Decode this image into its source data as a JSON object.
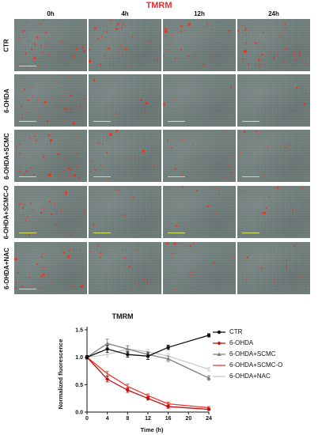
{
  "figure_title": "TMRM",
  "columns": [
    "0h",
    "4h",
    "12h",
    "24h"
  ],
  "rows": [
    "CTR",
    "6-OHDA",
    "6-OHDA+SCMC",
    "6-OHDA+SCMC-O",
    "6-OHDA+NAC"
  ],
  "colors": {
    "figure_title": "#e53030",
    "CTR": "#111111",
    "6-OHDA": "#c01010",
    "6-OHDA+SCMC": "#808080",
    "6-OHDA+SCMC-O": "#ee3a2a",
    "6-OHDA+NAC": "#c8c8c8"
  },
  "chart_data": {
    "type": "line",
    "title": "TMRM",
    "xlabel": "Time (h)",
    "ylabel": "Normalized fluorescence",
    "xlim": [
      0,
      24
    ],
    "ylim": [
      0,
      1.5
    ],
    "xticks": [
      0,
      4,
      8,
      12,
      16,
      20,
      24
    ],
    "yticks": [
      0.0,
      0.5,
      1.0,
      1.5
    ],
    "legend_position": "right",
    "x": [
      0,
      4,
      8,
      12,
      16,
      24
    ],
    "series": [
      {
        "name": "CTR",
        "values": [
          1.0,
          1.15,
          1.05,
          1.02,
          1.18,
          1.4
        ],
        "errors": [
          0.03,
          0.06,
          0.05,
          0.06,
          0.04,
          0.03
        ],
        "marker": "circle"
      },
      {
        "name": "6-OHDA",
        "values": [
          1.0,
          0.6,
          0.4,
          0.25,
          0.1,
          0.05
        ],
        "errors": [
          0.03,
          0.05,
          0.04,
          0.03,
          0.03,
          0.02
        ],
        "marker": "diamond"
      },
      {
        "name": "6-OHDA+SCMC",
        "values": [
          1.0,
          1.25,
          1.15,
          1.05,
          0.97,
          0.62
        ],
        "errors": [
          0.03,
          0.08,
          0.06,
          0.05,
          0.05,
          0.04
        ],
        "marker": "triangle"
      },
      {
        "name": "6-OHDA+SCMC-O",
        "values": [
          1.0,
          0.7,
          0.47,
          0.3,
          0.15,
          0.08
        ],
        "errors": [
          0.03,
          0.04,
          0.04,
          0.03,
          0.03,
          0.02
        ],
        "marker": "none"
      },
      {
        "name": "6-OHDA+NAC",
        "values": [
          1.0,
          1.05,
          1.15,
          1.1,
          1.02,
          0.78
        ],
        "errors": [
          0.03,
          0.04,
          0.05,
          0.04,
          0.04,
          0.03
        ],
        "marker": "none"
      }
    ]
  }
}
